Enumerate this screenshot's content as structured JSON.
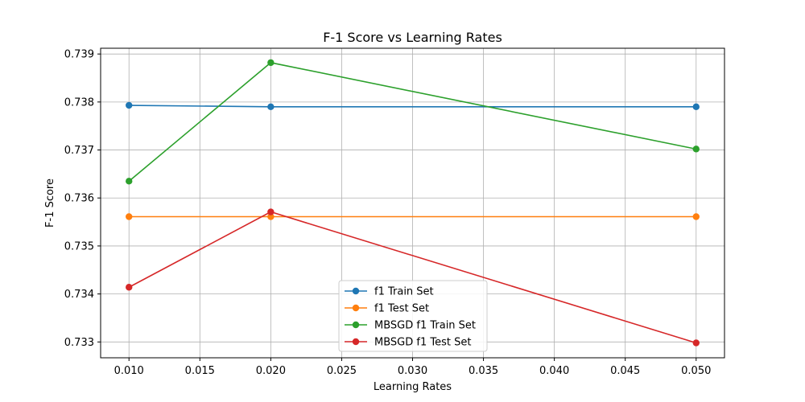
{
  "chart_data": {
    "type": "line",
    "title": "F-1 Score vs Learning Rates",
    "xlabel": "Learning Rates",
    "ylabel": "F-1 Score",
    "x": [
      0.01,
      0.02,
      0.05
    ],
    "xlim": [
      0.008,
      0.052
    ],
    "ylim": [
      0.73267,
      0.73912
    ],
    "xticks": [
      0.01,
      0.015,
      0.02,
      0.025,
      0.03,
      0.035,
      0.04,
      0.045,
      0.05
    ],
    "xtick_labels": [
      "0.010",
      "0.015",
      "0.020",
      "0.025",
      "0.030",
      "0.035",
      "0.040",
      "0.045",
      "0.050"
    ],
    "yticks": [
      0.733,
      0.734,
      0.735,
      0.736,
      0.737,
      0.738,
      0.739
    ],
    "ytick_labels": [
      "0.733",
      "0.734",
      "0.735",
      "0.736",
      "0.737",
      "0.738",
      "0.739"
    ],
    "grid": true,
    "legend_position": "lower-center",
    "series": [
      {
        "name": "f1 Train Set",
        "color": "#1f77b4",
        "values": [
          0.73793,
          0.7379,
          0.7379
        ]
      },
      {
        "name": "f1 Test Set",
        "color": "#ff7f0e",
        "values": [
          0.73561,
          0.73561,
          0.73561
        ]
      },
      {
        "name": "MBSGD f1 Train Set",
        "color": "#2ca02c",
        "values": [
          0.73635,
          0.73882,
          0.73702
        ]
      },
      {
        "name": "MBSGD f1 Test Set",
        "color": "#d62728",
        "values": [
          0.73414,
          0.73571,
          0.73298
        ]
      }
    ]
  }
}
